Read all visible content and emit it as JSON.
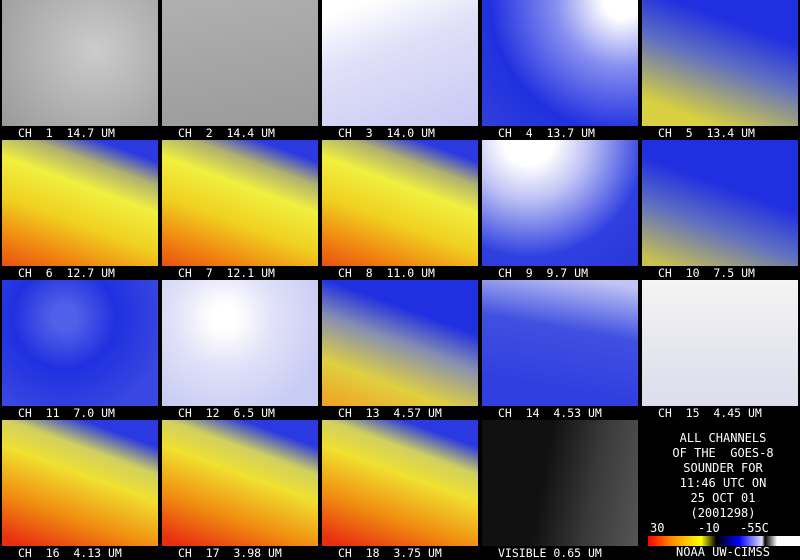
{
  "panels": [
    {
      "label": "CH  1  14.7 UM"
    },
    {
      "label": "CH  2  14.4 UM"
    },
    {
      "label": "CH  3  14.0 UM"
    },
    {
      "label": "CH  4  13.7 UM"
    },
    {
      "label": "CH  5  13.4 UM"
    },
    {
      "label": "CH  6  12.7 UM"
    },
    {
      "label": "CH  7  12.1 UM"
    },
    {
      "label": "CH  8  11.0 UM"
    },
    {
      "label": "CH  9  9.7 UM"
    },
    {
      "label": "CH  10  7.5 UM"
    },
    {
      "label": "CH  11  7.0 UM"
    },
    {
      "label": "CH  12  6.5 UM"
    },
    {
      "label": "CH  13  4.57 UM"
    },
    {
      "label": "CH  14  4.53 UM"
    },
    {
      "label": "CH  15  4.45 UM"
    },
    {
      "label": "CH  16  4.13 UM"
    },
    {
      "label": "CH  17  3.98 UM"
    },
    {
      "label": "CH  18  3.75 UM"
    },
    {
      "label": "VISIBLE 0.65 UM"
    }
  ],
  "info": {
    "lines": [
      "ALL CHANNELS",
      "OF THE  GOES-8",
      "SOUNDER FOR",
      "11:46 UTC ON",
      "25 OCT 01",
      "(2001298)"
    ]
  },
  "color_bar": {
    "labels": [
      "30",
      "-10",
      "-55C"
    ],
    "credit": "NOAA UW-CIMSS"
  }
}
